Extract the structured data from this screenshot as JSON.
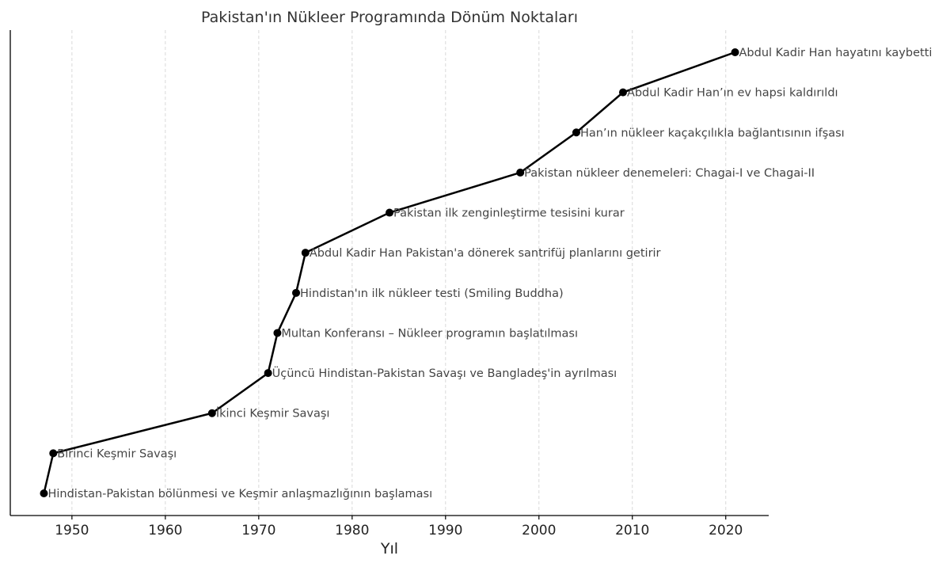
{
  "chart_data": {
    "type": "line",
    "title": "Pakistan'ın Nükleer Programında Dönüm Noktaları",
    "xlabel": "Yıl",
    "ylabel": "",
    "xlim": [
      1943.4,
      2024.6
    ],
    "xticks": [
      1950,
      1960,
      1970,
      1980,
      1990,
      2000,
      2010,
      2020
    ],
    "grid": "vertical dashed",
    "line_color": "#000000",
    "marker": "circle",
    "points": [
      {
        "year": 1947,
        "label": "Hindistan-Pakistan bölünmesi ve Keşmir anlaşmazlığının başlaması"
      },
      {
        "year": 1948,
        "label": "Birinci Keşmir Savaşı"
      },
      {
        "year": 1965,
        "label": "İkinci Keşmir Savaşı"
      },
      {
        "year": 1971,
        "label": "Üçüncü Hindistan-Pakistan Savaşı ve Bangladeş'in ayrılması"
      },
      {
        "year": 1972,
        "label": "Multan Konferansı – Nükleer programın başlatılması"
      },
      {
        "year": 1974,
        "label": "Hindistan'ın ilk nükleer testi (Smiling Buddha)"
      },
      {
        "year": 1975,
        "label": "Abdul Kadir Han Pakistan'a dönerek santrifüj planlarını getirir"
      },
      {
        "year": 1984,
        "label": "Pakistan ilk zenginleştirme tesisini kurar"
      },
      {
        "year": 1998,
        "label": "Pakistan nükleer denemeleri: Chagai-I ve Chagai-II"
      },
      {
        "year": 2004,
        "label": "Han’ın nükleer kaçakçılıkla bağlantısının ifşası"
      },
      {
        "year": 2009,
        "label": "Abdul Kadir Han’ın ev hapsi kaldırıldı"
      },
      {
        "year": 2021,
        "label": "Abdul Kadir Han hayatını kaybetti"
      }
    ]
  }
}
